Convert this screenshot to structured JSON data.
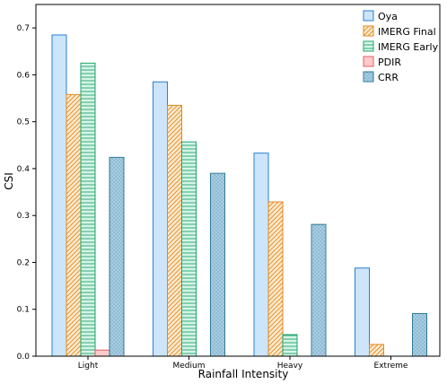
{
  "chart_data": {
    "type": "bar",
    "title": "",
    "xlabel": "Rainfall Intensity",
    "ylabel": "CSI",
    "categories": [
      "Light",
      "Medium",
      "Heavy",
      "Extreme"
    ],
    "ylim": [
      0,
      0.75
    ],
    "yticks": [
      "0.0",
      "0.1",
      "0.2",
      "0.3",
      "0.4",
      "0.5",
      "0.6",
      "0.7"
    ],
    "grid": false,
    "legend_position": "top-right",
    "series": [
      {
        "name": "Oya",
        "values": [
          0.685,
          0.585,
          0.433,
          0.188
        ],
        "fill": "#cce5fb",
        "stroke": "#2a7fd2",
        "pattern": "solid"
      },
      {
        "name": "IMERG Final",
        "values": [
          0.558,
          0.535,
          0.329,
          0.025
        ],
        "fill": "#fde9cf",
        "stroke": "#e08a1c",
        "pattern": "diagonal"
      },
      {
        "name": "IMERG Early",
        "values": [
          0.625,
          0.457,
          0.046,
          0.0
        ],
        "fill": "#d6f3e6",
        "stroke": "#1fa56e",
        "pattern": "horizontal"
      },
      {
        "name": "PDIR",
        "values": [
          0.013,
          0.0,
          0.0,
          0.0
        ],
        "fill": "#fbcaca",
        "stroke": "#e06060",
        "pattern": "solid"
      },
      {
        "name": "CRR",
        "values": [
          0.424,
          0.39,
          0.281,
          0.091
        ],
        "fill": "#a9cde2",
        "stroke": "#2f7a98",
        "pattern": "dots"
      }
    ]
  }
}
